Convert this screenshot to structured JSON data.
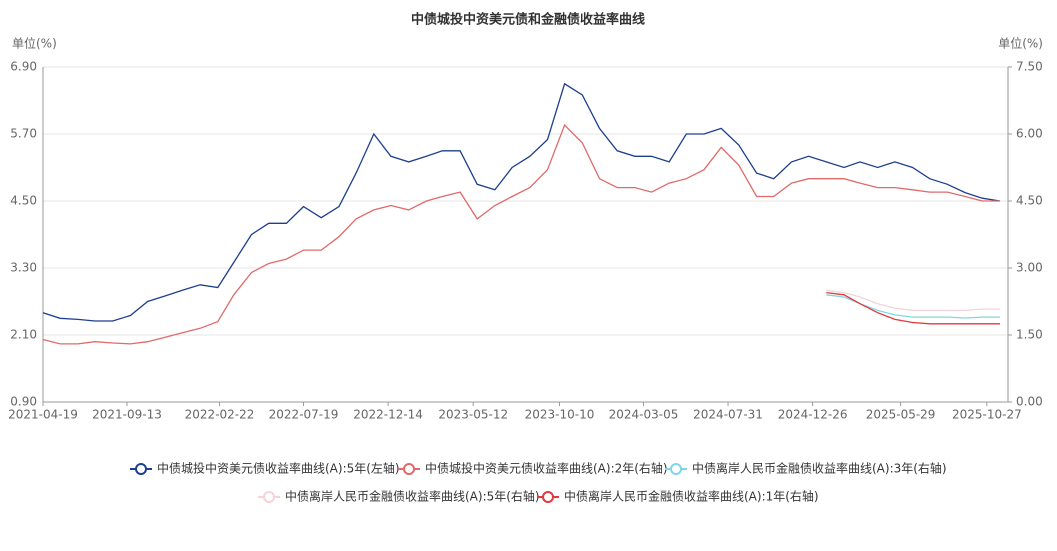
{
  "chart_data": {
    "type": "line",
    "title": "中债城投中资美元债和金融债收益率曲线",
    "y_label": "单位(%)",
    "y2_label": "单位(%)",
    "x": [
      "2021-04-19",
      "2021-05-19",
      "2021-06-19",
      "2021-07-19",
      "2021-08-19",
      "2021-09-19",
      "2021-10-19",
      "2021-11-19",
      "2021-12-19",
      "2022-01-19",
      "2022-02-19",
      "2022-03-19",
      "2022-04-19",
      "2022-05-19",
      "2022-06-19",
      "2022-07-19",
      "2022-08-19",
      "2022-09-19",
      "2022-10-19",
      "2022-11-19",
      "2022-12-19",
      "2023-01-19",
      "2023-02-19",
      "2023-03-19",
      "2023-04-19",
      "2023-05-19",
      "2023-06-19",
      "2023-07-19",
      "2023-08-19",
      "2023-09-19",
      "2023-10-19",
      "2023-11-19",
      "2023-12-19",
      "2024-01-19",
      "2024-02-19",
      "2024-03-19",
      "2024-04-19",
      "2024-05-19",
      "2024-06-19",
      "2024-07-19",
      "2024-08-19",
      "2024-09-19",
      "2024-10-19",
      "2024-11-19",
      "2024-12-19",
      "2025-01-19",
      "2025-02-19",
      "2025-03-19",
      "2025-04-19",
      "2025-05-19",
      "2025-06-19",
      "2025-07-19",
      "2025-08-19",
      "2025-09-19",
      "2025-10-19",
      "2025-11-19"
    ],
    "xlim": [
      "2021-04-19",
      "2025-12-03"
    ],
    "xticks": [
      "2021-04-19",
      "2021-09-13",
      "2022-02-22",
      "2022-07-19",
      "2022-12-14",
      "2023-05-12",
      "2023-10-10",
      "2024-03-05",
      "2024-07-31",
      "2024-12-26",
      "2025-05-29",
      "2025-10-27"
    ],
    "ylim": [
      0.9,
      6.9
    ],
    "yticks": [
      {
        "value": 0.9,
        "label": "0.90"
      },
      {
        "value": 2.1,
        "label": "2.10"
      },
      {
        "value": 3.3,
        "label": "3.30"
      },
      {
        "value": 4.5,
        "label": "4.50"
      },
      {
        "value": 5.7,
        "label": "5.70"
      },
      {
        "value": 6.9,
        "label": "6.90"
      }
    ],
    "y2lim": [
      0,
      7.5
    ],
    "y2ticks": [
      {
        "value": 0,
        "label": "0.00"
      },
      {
        "value": 1.5,
        "label": "1.50"
      },
      {
        "value": 3,
        "label": "3.00"
      },
      {
        "value": 4.5,
        "label": "4.50"
      },
      {
        "value": 6,
        "label": "6.00"
      },
      {
        "value": 7.5,
        "label": "7.50"
      }
    ],
    "grid": true,
    "series": [
      {
        "name": "中债城投中资美元债收益率曲线(A):5年(左轴)",
        "color": "#1d3f8f",
        "axis": "y",
        "values": [
          2.5,
          2.4,
          2.38,
          2.35,
          2.35,
          2.45,
          2.7,
          2.8,
          2.9,
          3.0,
          2.95,
          3.4,
          3.9,
          4.1,
          4.1,
          4.4,
          4.2,
          4.4,
          5.0,
          5.7,
          5.3,
          5.2,
          5.3,
          5.4,
          5.4,
          4.8,
          4.7,
          5.1,
          5.3,
          5.6,
          6.6,
          6.4,
          5.8,
          5.4,
          5.3,
          5.3,
          5.2,
          5.7,
          5.7,
          5.8,
          5.5,
          5.0,
          4.9,
          5.2,
          5.3,
          5.2,
          5.1,
          5.2,
          5.1,
          5.2,
          5.1,
          4.9,
          4.8,
          4.65,
          4.55,
          4.5
        ]
      },
      {
        "name": "中债城投中资美元债收益率曲线(A):2年(右轴)",
        "color": "#e06a6a",
        "axis": "y2",
        "values": [
          1.4,
          1.3,
          1.3,
          1.35,
          1.32,
          1.3,
          1.35,
          1.45,
          1.55,
          1.65,
          1.8,
          2.4,
          2.9,
          3.1,
          3.2,
          3.4,
          3.4,
          3.7,
          4.1,
          4.3,
          4.4,
          4.3,
          4.5,
          4.6,
          4.7,
          4.1,
          4.4,
          4.6,
          4.8,
          5.2,
          6.2,
          5.8,
          5.0,
          4.8,
          4.8,
          4.7,
          4.9,
          5.0,
          5.2,
          5.7,
          5.3,
          4.6,
          4.6,
          4.9,
          5.0,
          5.0,
          5.0,
          4.9,
          4.8,
          4.8,
          4.75,
          4.7,
          4.7,
          4.6,
          4.5,
          4.5
        ]
      },
      {
        "name": "中债离岸人民币金融债收益率曲线(A):3年(右轴)",
        "color": "#7fd6e6",
        "axis": "y2",
        "values": [
          null,
          null,
          null,
          null,
          null,
          null,
          null,
          null,
          null,
          null,
          null,
          null,
          null,
          null,
          null,
          null,
          null,
          null,
          null,
          null,
          null,
          null,
          null,
          null,
          null,
          null,
          null,
          null,
          null,
          null,
          null,
          null,
          null,
          null,
          null,
          null,
          null,
          null,
          null,
          null,
          null,
          null,
          null,
          null,
          null,
          2.4,
          2.35,
          2.2,
          2.05,
          1.95,
          1.9,
          1.9,
          1.9,
          1.88,
          1.9,
          1.9
        ]
      },
      {
        "name": "中债离岸人民币金融债收益率曲线(A):5年(右轴)",
        "color": "#f5d3d6",
        "axis": "y2",
        "values": [
          null,
          null,
          null,
          null,
          null,
          null,
          null,
          null,
          null,
          null,
          null,
          null,
          null,
          null,
          null,
          null,
          null,
          null,
          null,
          null,
          null,
          null,
          null,
          null,
          null,
          null,
          null,
          null,
          null,
          null,
          null,
          null,
          null,
          null,
          null,
          null,
          null,
          null,
          null,
          null,
          null,
          null,
          null,
          null,
          null,
          2.5,
          2.45,
          2.35,
          2.2,
          2.1,
          2.05,
          2.05,
          2.05,
          2.05,
          2.08,
          2.08
        ]
      },
      {
        "name": "中债离岸人民币金融债收益率曲线(A):1年(右轴)",
        "color": "#e03a3a",
        "axis": "y2",
        "values": [
          null,
          null,
          null,
          null,
          null,
          null,
          null,
          null,
          null,
          null,
          null,
          null,
          null,
          null,
          null,
          null,
          null,
          null,
          null,
          null,
          null,
          null,
          null,
          null,
          null,
          null,
          null,
          null,
          null,
          null,
          null,
          null,
          null,
          null,
          null,
          null,
          null,
          null,
          null,
          null,
          null,
          null,
          null,
          null,
          null,
          2.45,
          2.4,
          2.2,
          2.0,
          1.85,
          1.78,
          1.75,
          1.75,
          1.75,
          1.75,
          1.75
        ]
      }
    ]
  }
}
